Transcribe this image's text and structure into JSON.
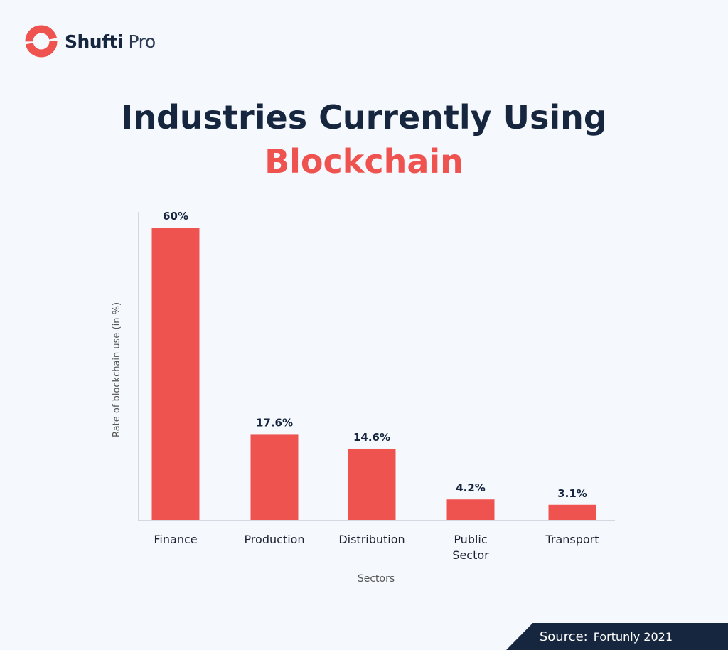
{
  "brand": {
    "name_bold": "Shufti",
    "name_light": "Pro",
    "color": "#ef5350"
  },
  "title_line1": "Industries Currently Using",
  "title_line2": "Blockchain",
  "source": {
    "label": "Source:",
    "value": "Fortunly 2021"
  },
  "chart_data": {
    "type": "bar",
    "title": "Industries Currently Using Blockchain",
    "categories": [
      "Finance",
      "Production",
      "Distribution",
      "Public Sector",
      "Transport"
    ],
    "values": [
      60,
      17.6,
      14.6,
      4.2,
      3.1
    ],
    "data_labels": [
      "60%",
      "17.6%",
      "14.6%",
      "4.2%",
      "3.1%"
    ],
    "xlabel": "Sectors",
    "ylabel": "Rate of blockchain use (in %)",
    "ylim": [
      0,
      63
    ],
    "grid": false,
    "bar_color": "#ef5350"
  }
}
